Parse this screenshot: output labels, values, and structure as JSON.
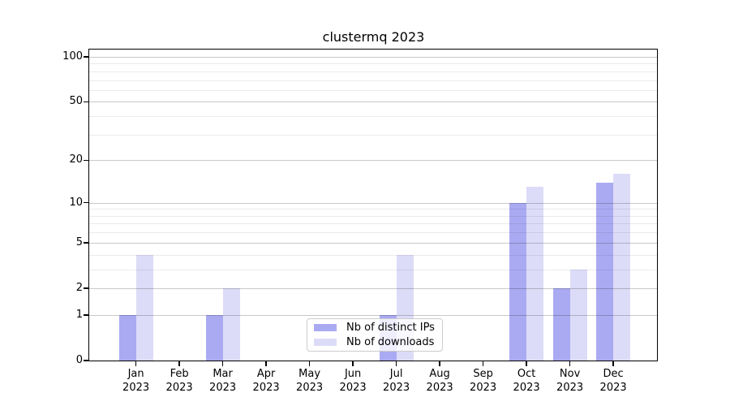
{
  "chart_data": {
    "type": "bar",
    "title": "clustermq 2023",
    "categories": [
      "Jan",
      "Feb",
      "Mar",
      "Apr",
      "May",
      "Jun",
      "Jul",
      "Aug",
      "Sep",
      "Oct",
      "Nov",
      "Dec"
    ],
    "category_year": "2023",
    "series": [
      {
        "name": "Nb of distinct IPs",
        "color": "#aaaaf2",
        "values": [
          1,
          0,
          1,
          0,
          0,
          0,
          1,
          0,
          0,
          10,
          2,
          14
        ]
      },
      {
        "name": "Nb of downloads",
        "color": "#dcdcf8",
        "values": [
          4,
          0,
          2,
          0,
          0,
          0,
          4,
          0,
          0,
          13,
          3,
          16
        ]
      }
    ],
    "xlabel": "",
    "ylabel": "",
    "y_scale": "log1p",
    "y_ticks_major": [
      0,
      1,
      2,
      5,
      10,
      20,
      50,
      100
    ],
    "y_ticks_minor": [
      3,
      4,
      6,
      7,
      8,
      9,
      30,
      40,
      60,
      70,
      80,
      90
    ],
    "ylim": [
      0,
      113
    ],
    "grid": "horizontal, drawn above bars",
    "legend_position": "bottom-center",
    "colors": {
      "major_grid": "rgba(0,0,0,0.21)",
      "minor_grid": "rgba(0,0,0,0.08)",
      "axis": "#000000",
      "text": "#000000",
      "background": "#ffffff"
    }
  }
}
